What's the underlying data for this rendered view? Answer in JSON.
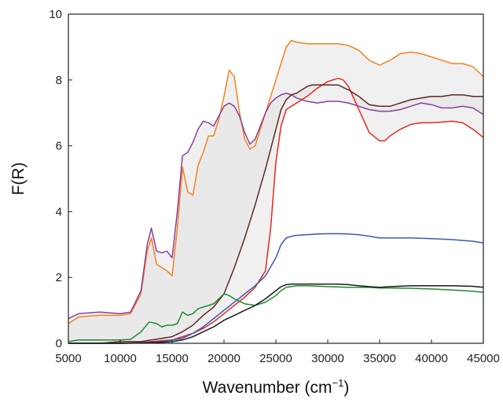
{
  "chart_data": {
    "type": "line",
    "title": "",
    "xlabel": "Wavenumber (cm",
    "xlabel_sup": "−1",
    "xlabel_end": ")",
    "ylabel": "F(R)",
    "xlim": [
      5000,
      45000
    ],
    "ylim": [
      0,
      10
    ],
    "xticks": [
      5000,
      10000,
      15000,
      20000,
      25000,
      30000,
      35000,
      40000,
      45000
    ],
    "yticks": [
      0,
      2,
      4,
      6,
      8,
      10
    ],
    "xtick_labels": [
      "5000",
      "10000",
      "15000",
      "20000",
      "25000",
      "30000",
      "35000",
      "40000",
      "45000"
    ],
    "ytick_labels": [
      "0",
      "2",
      "4",
      "6",
      "8",
      "10"
    ],
    "grid": false,
    "legend": "none",
    "shaded_regions": [
      {
        "upper_series": 0,
        "lower_series": 2,
        "color": "#e4e4e4"
      },
      {
        "upper_series": 1,
        "lower_series": 3,
        "color": "#e4e4e4"
      }
    ],
    "series": [
      {
        "color": "#f5821f",
        "x": [
          5000,
          6000,
          8000,
          10000,
          11000,
          12000,
          12600,
          13000,
          13500,
          14000,
          14500,
          15000,
          15500,
          16000,
          16500,
          17000,
          17500,
          18000,
          18500,
          19000,
          19500,
          20000,
          20500,
          21000,
          21500,
          22000,
          22500,
          23000,
          23500,
          24000,
          24500,
          25000,
          25500,
          26000,
          26500,
          27000,
          28000,
          29000,
          30000,
          31000,
          32000,
          33000,
          34000,
          35000,
          36000,
          37000,
          38000,
          39000,
          40000,
          41000,
          42000,
          43000,
          44000,
          45000
        ],
        "y": [
          0.6,
          0.8,
          0.85,
          0.85,
          0.9,
          1.5,
          2.8,
          3.2,
          2.4,
          2.3,
          2.2,
          2.05,
          3.5,
          5.35,
          4.6,
          4.5,
          5.4,
          5.8,
          6.3,
          6.3,
          6.8,
          7.5,
          8.3,
          8.1,
          7.0,
          6.2,
          5.9,
          6.0,
          6.5,
          7.0,
          7.5,
          8.0,
          8.5,
          9.0,
          9.2,
          9.15,
          9.1,
          9.1,
          9.1,
          9.1,
          9.05,
          8.9,
          8.6,
          8.45,
          8.6,
          8.8,
          8.85,
          8.8,
          8.7,
          8.6,
          8.5,
          8.5,
          8.4,
          8.1
        ]
      },
      {
        "color": "#8a3fa0",
        "x": [
          5000,
          6000,
          8000,
          10000,
          11000,
          12000,
          12600,
          13000,
          13500,
          14000,
          14500,
          15000,
          15500,
          16000,
          16500,
          17000,
          17500,
          18000,
          18500,
          19000,
          19500,
          20000,
          20500,
          21000,
          21500,
          22000,
          22500,
          23000,
          23500,
          24000,
          24500,
          25000,
          25500,
          26000,
          26500,
          27000,
          28000,
          29000,
          30000,
          31000,
          32000,
          33000,
          34000,
          35000,
          36000,
          37000,
          38000,
          39000,
          40000,
          41000,
          42000,
          43000,
          44000,
          45000
        ],
        "y": [
          0.75,
          0.9,
          0.95,
          0.9,
          0.95,
          1.6,
          3.0,
          3.5,
          2.8,
          2.75,
          2.8,
          2.6,
          4.0,
          5.7,
          5.8,
          6.1,
          6.5,
          6.75,
          6.7,
          6.6,
          6.9,
          7.2,
          7.3,
          7.2,
          6.9,
          6.4,
          6.05,
          6.2,
          6.6,
          7.0,
          7.3,
          7.45,
          7.55,
          7.6,
          7.55,
          7.45,
          7.35,
          7.3,
          7.35,
          7.35,
          7.3,
          7.2,
          7.1,
          7.05,
          7.05,
          7.1,
          7.2,
          7.3,
          7.25,
          7.15,
          7.15,
          7.2,
          7.15,
          6.95
        ]
      },
      {
        "color": "#e8261f",
        "x": [
          5000,
          8000,
          10000,
          12000,
          13000,
          14000,
          15000,
          16000,
          17000,
          18000,
          19000,
          20000,
          21000,
          22000,
          23000,
          24000,
          24500,
          25000,
          25500,
          26000,
          26500,
          27000,
          28000,
          29000,
          30000,
          31000,
          31500,
          32000,
          33000,
          34000,
          35000,
          35500,
          36000,
          37000,
          38000,
          39000,
          40000,
          41000,
          42000,
          43000,
          44000,
          45000
        ],
        "y": [
          0.0,
          0.0,
          0.0,
          0.02,
          0.05,
          0.08,
          0.1,
          0.2,
          0.3,
          0.45,
          0.65,
          0.9,
          1.15,
          1.4,
          1.7,
          2.2,
          3.5,
          5.5,
          6.6,
          7.1,
          7.2,
          7.3,
          7.5,
          7.75,
          7.95,
          8.05,
          8.0,
          7.8,
          7.1,
          6.4,
          6.15,
          6.15,
          6.3,
          6.5,
          6.65,
          6.7,
          6.7,
          6.72,
          6.75,
          6.7,
          6.5,
          6.25
        ]
      },
      {
        "color": "#5c2a22",
        "x": [
          5000,
          8000,
          10000,
          12000,
          13000,
          14000,
          15000,
          16000,
          17000,
          18000,
          19000,
          20000,
          21000,
          22000,
          23000,
          24000,
          24500,
          25000,
          25500,
          26000,
          26500,
          27000,
          27500,
          28000,
          28500,
          29000,
          30000,
          31000,
          32000,
          33000,
          34000,
          35000,
          36000,
          37000,
          38000,
          39000,
          40000,
          41000,
          42000,
          43000,
          44000,
          45000
        ],
        "y": [
          0.0,
          0.0,
          0.05,
          0.05,
          0.1,
          0.15,
          0.2,
          0.35,
          0.55,
          0.85,
          1.1,
          1.5,
          2.3,
          3.2,
          4.2,
          5.3,
          5.9,
          6.5,
          7.1,
          7.4,
          7.55,
          7.6,
          7.7,
          7.8,
          7.85,
          7.85,
          7.85,
          7.85,
          7.7,
          7.5,
          7.25,
          7.2,
          7.2,
          7.3,
          7.4,
          7.45,
          7.5,
          7.5,
          7.55,
          7.55,
          7.5,
          7.5
        ]
      },
      {
        "color": "#3c57b8",
        "x": [
          5000,
          8000,
          10000,
          12000,
          14000,
          15000,
          16000,
          17000,
          18000,
          19000,
          20000,
          21000,
          22000,
          23000,
          24000,
          25000,
          25500,
          26000,
          26500,
          27000,
          28000,
          29000,
          30000,
          31000,
          32000,
          33000,
          34000,
          35000,
          36000,
          38000,
          40000,
          42000,
          44000,
          45000
        ],
        "y": [
          0.0,
          0.0,
          0.0,
          0.02,
          0.05,
          0.1,
          0.15,
          0.3,
          0.5,
          0.75,
          1.0,
          1.25,
          1.5,
          1.75,
          2.05,
          2.6,
          3.0,
          3.2,
          3.25,
          3.28,
          3.3,
          3.32,
          3.33,
          3.33,
          3.32,
          3.3,
          3.25,
          3.2,
          3.2,
          3.2,
          3.18,
          3.15,
          3.1,
          3.05
        ]
      },
      {
        "color": "#1f8a2e",
        "x": [
          5000,
          6000,
          8000,
          10000,
          11000,
          12000,
          12800,
          13500,
          14000,
          14500,
          15000,
          15500,
          16000,
          16500,
          17000,
          17500,
          18000,
          18500,
          19000,
          19500,
          20000,
          20500,
          21000,
          22000,
          23000,
          24000,
          25000,
          25500,
          26000,
          27000,
          28000,
          30000,
          32000,
          34000,
          35000,
          36000,
          38000,
          40000,
          42000,
          44000,
          45000
        ],
        "y": [
          0.05,
          0.1,
          0.1,
          0.1,
          0.12,
          0.35,
          0.65,
          0.6,
          0.5,
          0.55,
          0.55,
          0.6,
          0.95,
          0.85,
          0.9,
          1.05,
          1.1,
          1.15,
          1.2,
          1.35,
          1.5,
          1.45,
          1.35,
          1.2,
          1.15,
          1.25,
          1.45,
          1.6,
          1.7,
          1.75,
          1.75,
          1.72,
          1.7,
          1.7,
          1.68,
          1.68,
          1.67,
          1.65,
          1.62,
          1.58,
          1.55
        ]
      },
      {
        "color": "#1a1a1a",
        "x": [
          5000,
          8000,
          10000,
          12000,
          14000,
          15000,
          16000,
          17000,
          18000,
          19000,
          20000,
          21000,
          22000,
          23000,
          24000,
          25000,
          25500,
          26000,
          26500,
          27000,
          28000,
          29000,
          30000,
          31000,
          32000,
          33000,
          34000,
          35000,
          36000,
          38000,
          40000,
          42000,
          44000,
          45000
        ],
        "y": [
          0.0,
          0.0,
          0.0,
          0.01,
          0.03,
          0.05,
          0.1,
          0.2,
          0.35,
          0.5,
          0.7,
          0.85,
          1.0,
          1.15,
          1.35,
          1.6,
          1.72,
          1.78,
          1.8,
          1.8,
          1.8,
          1.8,
          1.8,
          1.8,
          1.78,
          1.75,
          1.72,
          1.7,
          1.72,
          1.75,
          1.75,
          1.75,
          1.73,
          1.7
        ]
      }
    ]
  }
}
